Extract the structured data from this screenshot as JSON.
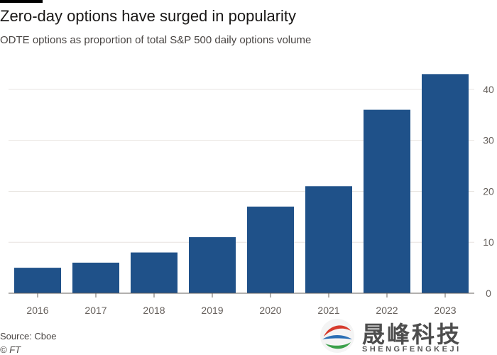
{
  "header": {
    "title": "Zero-day options have surged in popularity",
    "subtitle": "ODTE options as proportion of total S&P 500 daily options volume"
  },
  "footer": {
    "source": "Source: Cboe",
    "copyright": "© FT"
  },
  "watermark": {
    "name": "晟峰科技",
    "sub": "SHENGFENGKEJI"
  },
  "chart_data": {
    "type": "bar",
    "categories": [
      "2016",
      "2017",
      "2018",
      "2019",
      "2020",
      "2021",
      "2022",
      "2023"
    ],
    "values": [
      5,
      6,
      8,
      11,
      17,
      21,
      36,
      43
    ],
    "ylim": [
      0,
      45
    ],
    "yticks": [
      0,
      10,
      20,
      30,
      40
    ],
    "y_axis_side": "right",
    "grid": true,
    "bar_color": "#1f5189"
  }
}
